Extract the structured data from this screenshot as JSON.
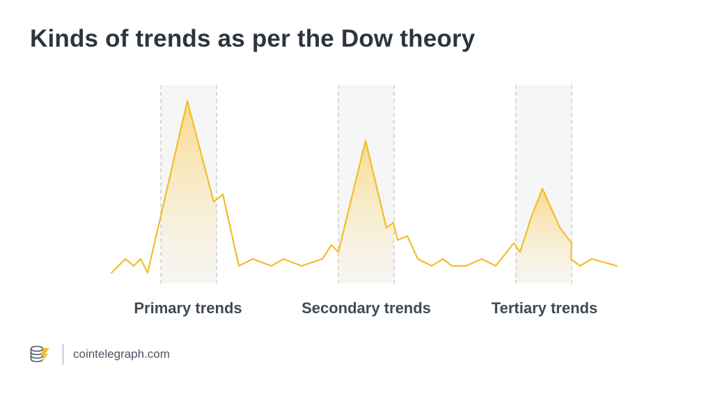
{
  "title": "Kinds of trends as per the Dow theory",
  "labels": [
    "Primary trends",
    "Secondary trends",
    "Tertiary trends"
  ],
  "footer": {
    "site": "cointelegraph.com"
  },
  "colors": {
    "line": "#f2bd27",
    "fill_top": "#f7d679",
    "band": "#f6f6f6",
    "dashed": "#c9c9c9",
    "title": "#2c353d",
    "label": "#3f4a55"
  }
}
